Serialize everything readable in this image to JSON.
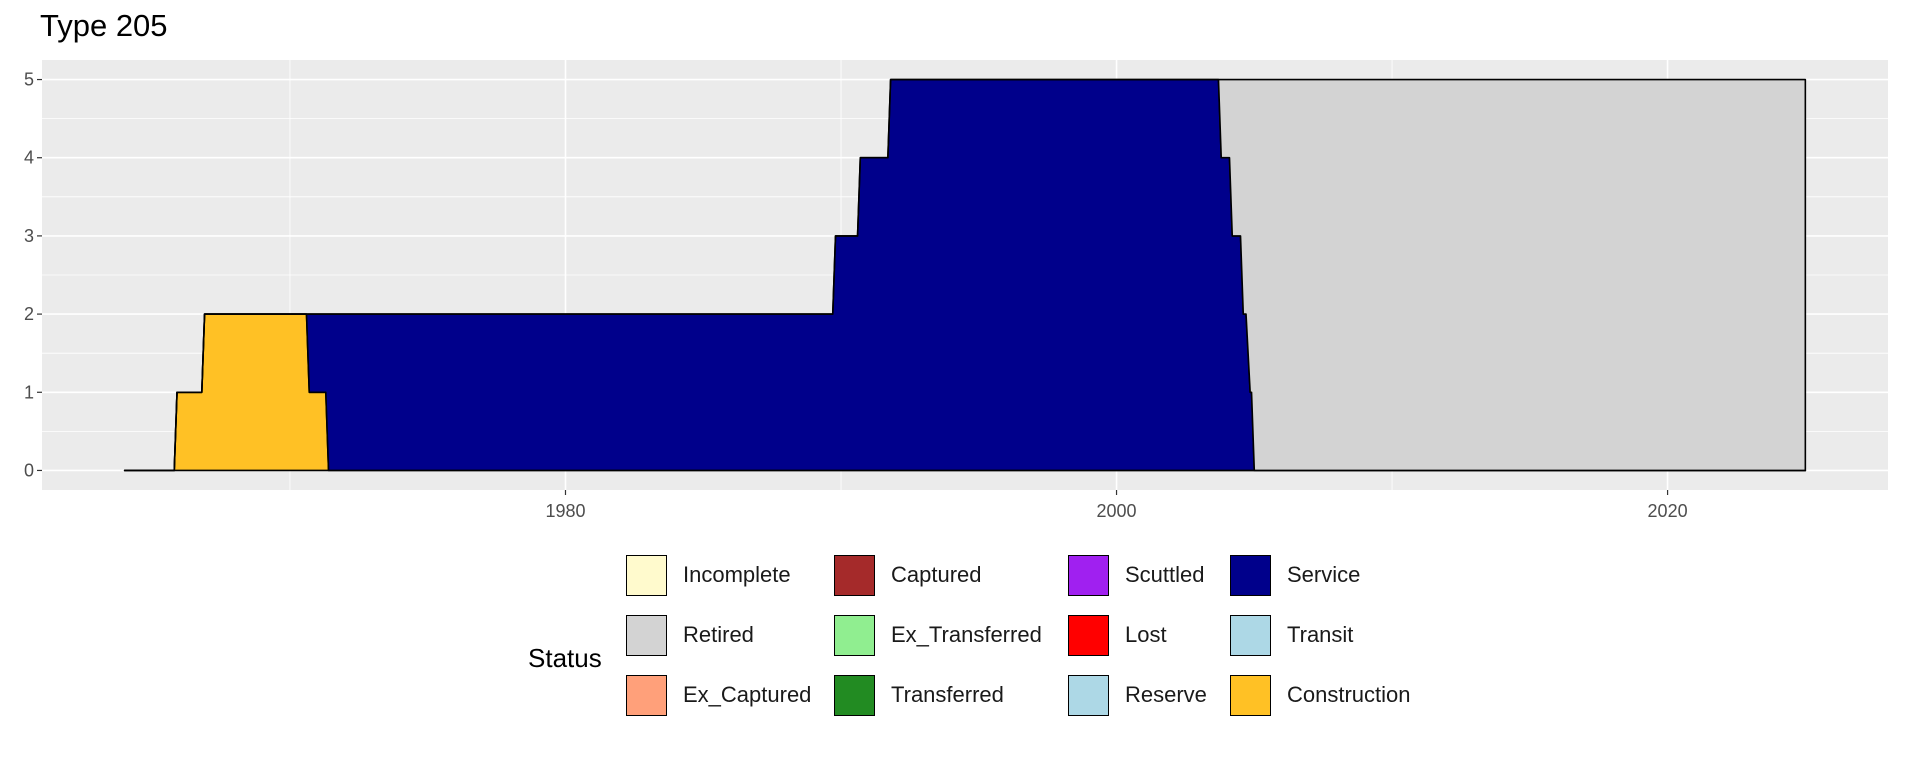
{
  "chart_data": {
    "type": "area",
    "title": "Type 205",
    "xlabel": "",
    "ylabel": "",
    "xlim": [
      1961,
      2028
    ],
    "ylim": [
      -0.25,
      5.25
    ],
    "x_ticks": [
      1980,
      2000,
      2020
    ],
    "y_ticks": [
      0,
      1,
      2,
      3,
      4,
      5
    ],
    "grid": true,
    "legend_title": "Status",
    "legend_position": "bottom",
    "series": [
      {
        "name": "Construction",
        "color": "#FFC125",
        "points": [
          [
            1964,
            0
          ],
          [
            1965.8,
            0
          ],
          [
            1965.9,
            1
          ],
          [
            1966.8,
            1
          ],
          [
            1966.9,
            2
          ],
          [
            1970.6,
            2
          ],
          [
            1970.7,
            1
          ],
          [
            1971.3,
            1
          ],
          [
            1971.4,
            0
          ],
          [
            2025,
            0
          ]
        ]
      },
      {
        "name": "Service",
        "color": "#00008B",
        "points": [
          [
            1964,
            0
          ],
          [
            1970.6,
            0
          ],
          [
            1970.7,
            1
          ],
          [
            1971.3,
            1
          ],
          [
            1971.4,
            2
          ],
          [
            1989.7,
            2
          ],
          [
            1989.8,
            3
          ],
          [
            1990.6,
            3
          ],
          [
            1990.7,
            4
          ],
          [
            1991.7,
            4
          ],
          [
            1991.8,
            5
          ],
          [
            2003.7,
            5
          ],
          [
            2003.8,
            4
          ],
          [
            2004.1,
            4
          ],
          [
            2004.2,
            3
          ],
          [
            2004.5,
            3
          ],
          [
            2004.6,
            2
          ],
          [
            2004.7,
            2
          ],
          [
            2004.85,
            1
          ],
          [
            2004.9,
            1
          ],
          [
            2005,
            0
          ],
          [
            2025,
            0
          ]
        ]
      },
      {
        "name": "Retired",
        "color": "#D3D3D3",
        "points": [
          [
            1964,
            0
          ],
          [
            2003.7,
            0
          ],
          [
            2003.8,
            1
          ],
          [
            2004.1,
            1
          ],
          [
            2004.2,
            2
          ],
          [
            2004.5,
            2
          ],
          [
            2004.6,
            3
          ],
          [
            2004.7,
            3
          ],
          [
            2004.85,
            4
          ],
          [
            2004.9,
            4
          ],
          [
            2005,
            5
          ],
          [
            2025,
            5
          ]
        ]
      }
    ],
    "legend_items": [
      {
        "label": "Incomplete",
        "color": "#FFFACD"
      },
      {
        "label": "Retired",
        "color": "#D3D3D3"
      },
      {
        "label": "Ex_Captured",
        "color": "#FFA07A"
      },
      {
        "label": "Captured",
        "color": "#A52A2A"
      },
      {
        "label": "Ex_Transferred",
        "color": "#90EE90"
      },
      {
        "label": "Transferred",
        "color": "#228B22"
      },
      {
        "label": "Scuttled",
        "color": "#A020F0"
      },
      {
        "label": "Lost",
        "color": "#FF0000"
      },
      {
        "label": "Reserve",
        "color": "#ADD8E6"
      },
      {
        "label": "Service",
        "color": "#00008B"
      },
      {
        "label": "Transit",
        "color": "#ADD8E6"
      },
      {
        "label": "Construction",
        "color": "#FFC125"
      }
    ]
  }
}
